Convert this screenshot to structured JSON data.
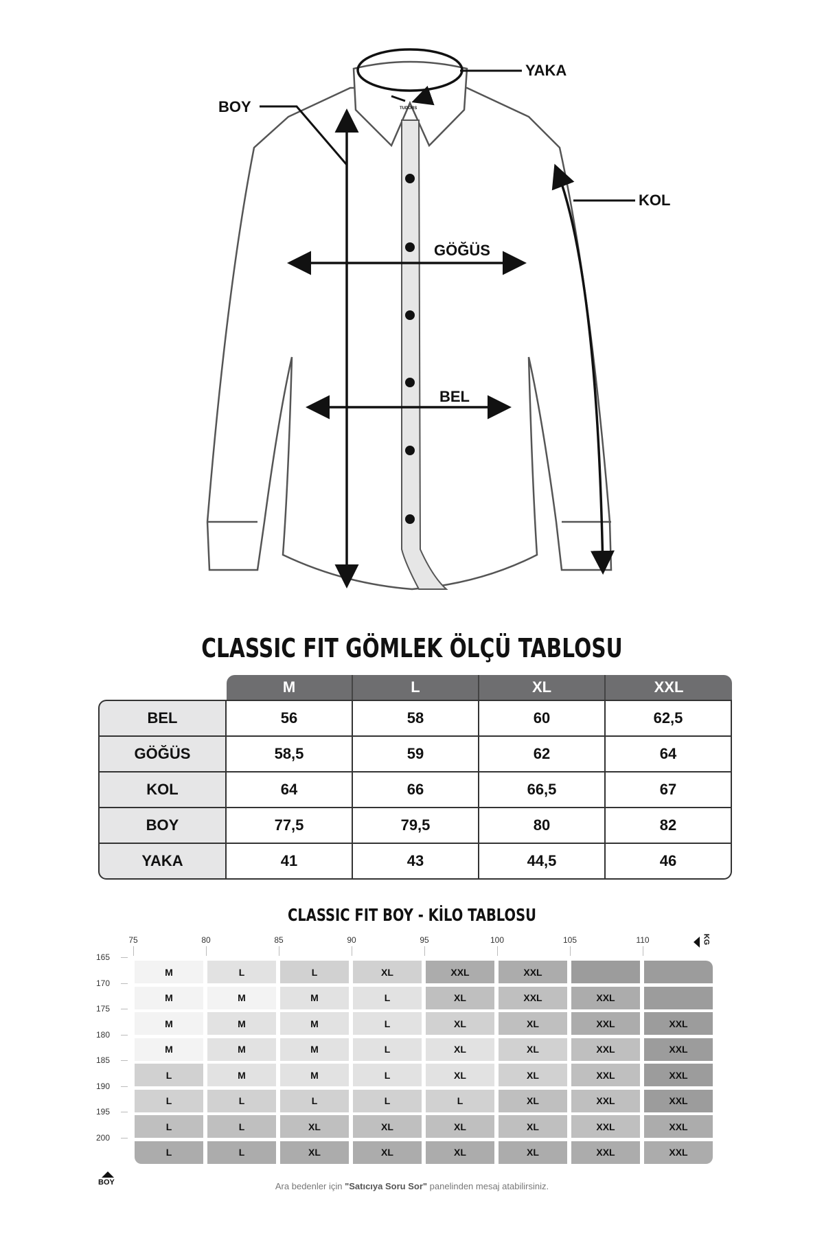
{
  "diagram": {
    "labels": {
      "yaka": "YAKA",
      "boy": "BOY",
      "kol": "KOL",
      "gogus": "GÖĞÜS",
      "bel": "BEL"
    },
    "logo_text": "TUDORS"
  },
  "size_table": {
    "title": "CLASSIC FIT GÖMLEK ÖLÇÜ TABLOSU",
    "columns": [
      "M",
      "L",
      "XL",
      "XXL"
    ],
    "rows": [
      {
        "label": "BEL",
        "values": [
          "56",
          "58",
          "60",
          "62,5"
        ]
      },
      {
        "label": "GÖĞÜS",
        "values": [
          "58,5",
          "59",
          "62",
          "64"
        ]
      },
      {
        "label": "KOL",
        "values": [
          "64",
          "66",
          "66,5",
          "67"
        ]
      },
      {
        "label": "BOY",
        "values": [
          "77,5",
          "79,5",
          "80",
          "82"
        ]
      },
      {
        "label": "YAKA",
        "values": [
          "41",
          "43",
          "44,5",
          "46"
        ]
      }
    ],
    "header_color": "#6e6e70",
    "label_bg": "#e6e6e7"
  },
  "height_weight": {
    "title": "CLASSIC FIT BOY - KİLO TABLOSU",
    "kg_axis_label": "KG",
    "kg_ticks": [
      "75",
      "80",
      "85",
      "90",
      "95",
      "100",
      "105",
      "110"
    ],
    "boy_axis_label": "BOY",
    "height_ticks": [
      "165",
      "170",
      "175",
      "180",
      "185",
      "190",
      "195",
      "200"
    ],
    "rows": [
      [
        "M",
        "L",
        "L",
        "XL",
        "XXL",
        "XXL",
        "",
        ""
      ],
      [
        "M",
        "M",
        "M",
        "L",
        "XL",
        "XXL",
        "XXL",
        ""
      ],
      [
        "M",
        "M",
        "M",
        "L",
        "XL",
        "XL",
        "XXL",
        "XXL"
      ],
      [
        "M",
        "M",
        "M",
        "L",
        "XL",
        "XL",
        "XXL",
        "XXL"
      ],
      [
        "L",
        "M",
        "M",
        "L",
        "XL",
        "XL",
        "XXL",
        "XXL"
      ],
      [
        "L",
        "L",
        "L",
        "L",
        "L",
        "XL",
        "XXL",
        "XXL"
      ],
      [
        "L",
        "L",
        "XL",
        "XL",
        "XL",
        "XL",
        "XXL",
        "XXL"
      ],
      [
        "L",
        "L",
        "XL",
        "XL",
        "XL",
        "XL",
        "XXL",
        "XXL"
      ]
    ],
    "shades": [
      [
        1,
        2,
        3,
        3,
        5,
        5,
        6,
        6
      ],
      [
        1,
        1,
        2,
        2,
        4,
        4,
        5,
        6
      ],
      [
        1,
        2,
        2,
        2,
        3,
        4,
        5,
        6
      ],
      [
        1,
        2,
        2,
        2,
        2,
        3,
        4,
        6
      ],
      [
        3,
        2,
        2,
        2,
        2,
        3,
        4,
        6
      ],
      [
        3,
        3,
        3,
        3,
        3,
        4,
        4,
        6
      ],
      [
        4,
        4,
        4,
        4,
        4,
        4,
        4,
        5
      ],
      [
        5,
        5,
        5,
        5,
        5,
        5,
        5,
        5
      ]
    ],
    "palette": [
      "#ffffff",
      "#f3f3f3",
      "#e2e2e2",
      "#d1d1d1",
      "#bfbfbf",
      "#acacac",
      "#9c9c9c"
    ],
    "footnote_pre": "Ara bedenler için ",
    "footnote_bold": "\"Satıcıya Soru Sor\"",
    "footnote_post": " panelinden mesaj atabilirsiniz."
  }
}
